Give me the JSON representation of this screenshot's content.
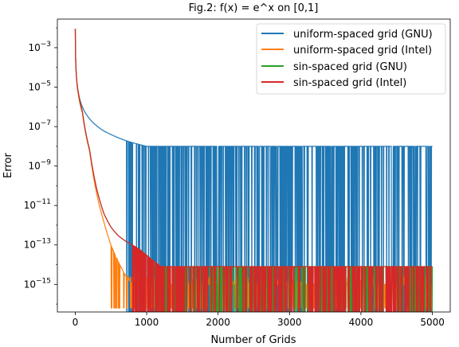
{
  "chart_data": {
    "type": "line",
    "title": "Fig.2: f(x) = e^x on [0,1]",
    "xlabel": "Number of Grids",
    "ylabel": "Error",
    "xlim": [
      -250,
      5250
    ],
    "ylim_log10": [
      -16.4,
      -1.55
    ],
    "yscale": "log",
    "x_ticks": [
      0,
      1000,
      2000,
      3000,
      4000,
      5000
    ],
    "x_tick_labels": [
      "0",
      "1000",
      "2000",
      "3000",
      "4000",
      "5000"
    ],
    "y_ticks_log10": [
      -15,
      -13,
      -11,
      -9,
      -7,
      -5,
      -3
    ],
    "y_tick_mantissa": "10",
    "y_tick_exponents": [
      "−15",
      "−13",
      "−11",
      "−9",
      "−7",
      "−5",
      "−3"
    ],
    "grid": false,
    "legend_position": "top-right",
    "series": [
      {
        "name": "uniform-spaced grid (GNU)",
        "color": "#1f77b4",
        "points": [
          [
            1,
            0.009
          ],
          [
            2,
            0.0025
          ],
          [
            5,
            0.0004
          ],
          [
            10,
            0.0001
          ],
          [
            20,
            2.5e-05
          ],
          [
            50,
            4e-06
          ],
          [
            100,
            1e-06
          ],
          [
            200,
            2.5e-07
          ],
          [
            300,
            1.1e-07
          ],
          [
            400,
            6e-08
          ],
          [
            500,
            4e-08
          ],
          [
            700,
            2e-08
          ],
          [
            1000,
            1e-08
          ]
        ],
        "noise_from": 700,
        "noise_floor_log10": [
          -16.4,
          -14.9
        ]
      },
      {
        "name": "uniform-spaced grid (Intel)",
        "color": "#ff7f0e",
        "points": [
          [
            1,
            0.009
          ],
          [
            2,
            0.0025
          ],
          [
            5,
            0.0004
          ],
          [
            10,
            0.0001
          ],
          [
            20,
            2.2e-05
          ],
          [
            50,
            3e-06
          ],
          [
            100,
            5e-07
          ],
          [
            200,
            6e-09
          ],
          [
            300,
            4e-11
          ],
          [
            400,
            1.5e-12
          ],
          [
            500,
            1e-13
          ],
          [
            600,
            1.5e-14
          ],
          [
            700,
            3e-15
          ],
          [
            800,
            1e-15
          ]
        ],
        "noise_from": 500,
        "noise_floor_log10": [
          -15.7,
          -14.6
        ]
      },
      {
        "name": "sin-spaced grid (GNU)",
        "color": "#2ca02c",
        "points": [
          [
            1,
            0.009
          ],
          [
            2,
            0.0025
          ],
          [
            5,
            0.0004
          ],
          [
            10,
            0.0001
          ],
          [
            20,
            2.5e-05
          ],
          [
            50,
            4e-06
          ],
          [
            100,
            6e-07
          ],
          [
            200,
            7e-09
          ],
          [
            300,
            7e-11
          ],
          [
            400,
            4e-12
          ],
          [
            500,
            8e-13
          ],
          [
            600,
            3e-13
          ],
          [
            700,
            1.6e-13
          ],
          [
            800,
            1e-13
          ],
          [
            900,
            6e-14
          ],
          [
            1000,
            3e-14
          ],
          [
            1100,
            1.5e-14
          ],
          [
            1200,
            8e-15
          ]
        ],
        "noise_from": 1100,
        "noise_floor_log10": [
          -16.4,
          -14.5
        ]
      },
      {
        "name": "sin-spaced grid (Intel)",
        "color": "#d62728",
        "points": [
          [
            1,
            0.009
          ],
          [
            2,
            0.0025
          ],
          [
            5,
            0.0004
          ],
          [
            10,
            0.0001
          ],
          [
            20,
            2.5e-05
          ],
          [
            50,
            4e-06
          ],
          [
            100,
            6e-07
          ],
          [
            200,
            7e-09
          ],
          [
            300,
            7e-11
          ],
          [
            400,
            4e-12
          ],
          [
            500,
            8e-13
          ],
          [
            600,
            3e-13
          ],
          [
            700,
            1.6e-13
          ],
          [
            800,
            1e-13
          ],
          [
            900,
            6e-14
          ],
          [
            1000,
            3e-14
          ],
          [
            1100,
            1.5e-14
          ],
          [
            1200,
            8e-15
          ]
        ],
        "noise_from": 800,
        "noise_floor_log10": [
          -16.4,
          -14.5
        ]
      }
    ]
  }
}
